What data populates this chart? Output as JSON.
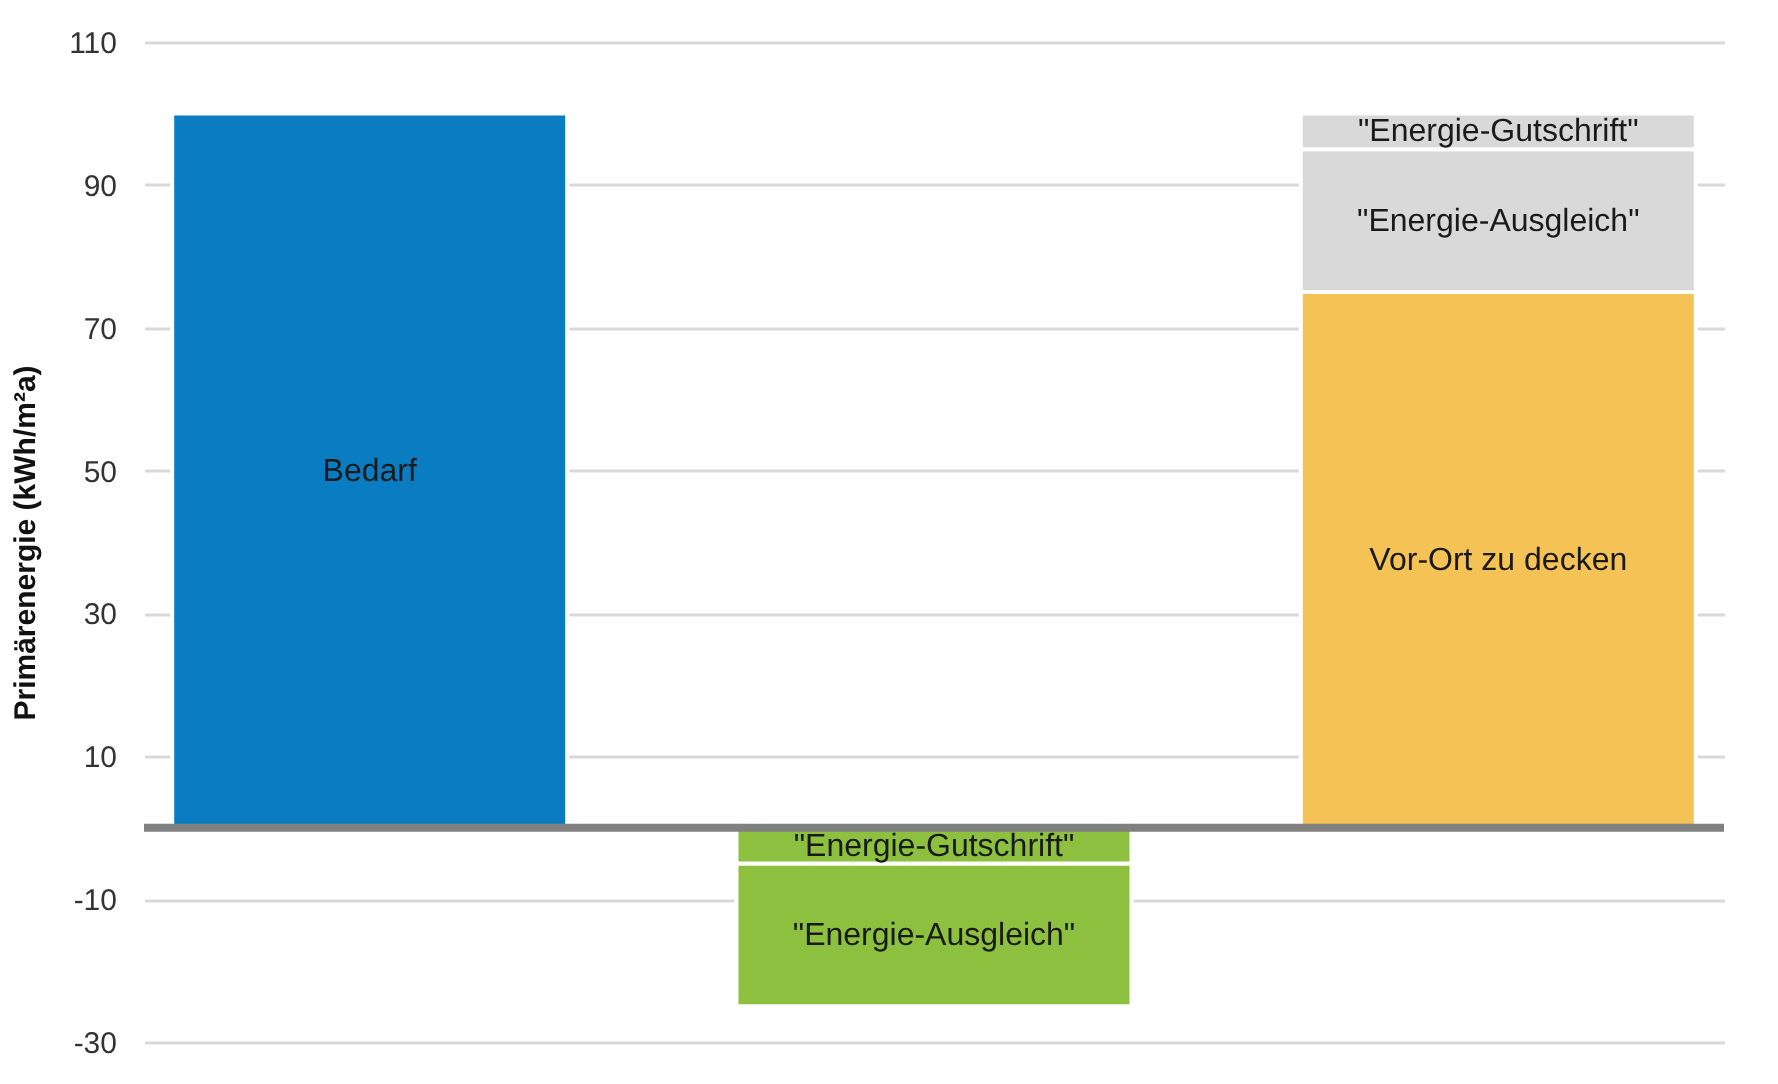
{
  "chart_data": {
    "type": "bar",
    "ylabel": "Primärenergie (kWh/m²a)",
    "categories": [
      null,
      null,
      null
    ],
    "series": [
      {
        "name": "Bedarf",
        "color": "#0a7dc2",
        "values": [
          100,
          null,
          null
        ],
        "base": [
          0,
          null,
          null
        ]
      },
      {
        "name": "Vor-Ort zu decken",
        "color": "#f5c256",
        "values": [
          null,
          null,
          75
        ],
        "base": [
          null,
          null,
          0
        ]
      },
      {
        "name": "\"Energie-Ausgleich\"",
        "colors": [
          null,
          "#8dc03f",
          "#d9d9d9"
        ],
        "values": [
          null,
          -20,
          20
        ],
        "base": [
          null,
          -5,
          75
        ]
      },
      {
        "name": "\"Energie-Gutschrift\"",
        "colors": [
          null,
          "#8dc03f",
          "#d9d9d9"
        ],
        "values": [
          null,
          -5,
          5
        ],
        "base": [
          null,
          0,
          95
        ]
      }
    ],
    "ylim": [
      -30,
      110
    ],
    "yticks": [
      -30,
      -10,
      10,
      30,
      50,
      70,
      90,
      110
    ],
    "ref_lines": [
      {
        "axis": "y",
        "value": 0,
        "color": "#808080"
      }
    ],
    "grid": "y",
    "tick_labels": "y"
  }
}
